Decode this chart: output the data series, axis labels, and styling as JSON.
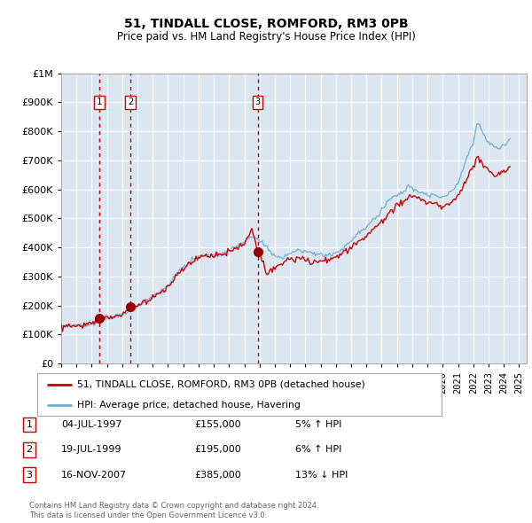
{
  "title": "51, TINDALL CLOSE, ROMFORD, RM3 0PB",
  "subtitle": "Price paid vs. HM Land Registry's House Price Index (HPI)",
  "ylim": [
    0,
    1000000
  ],
  "xlim_start": 1995.0,
  "xlim_end": 2025.5,
  "yticks": [
    0,
    100000,
    200000,
    300000,
    400000,
    500000,
    600000,
    700000,
    800000,
    900000,
    1000000
  ],
  "xticks": [
    1995,
    1996,
    1997,
    1998,
    1999,
    2000,
    2001,
    2002,
    2003,
    2004,
    2005,
    2006,
    2007,
    2008,
    2009,
    2010,
    2011,
    2012,
    2013,
    2014,
    2015,
    2016,
    2017,
    2018,
    2019,
    2020,
    2021,
    2022,
    2023,
    2024,
    2025
  ],
  "background_color": "#ffffff",
  "plot_bg_color": "#dce6f1",
  "grid_color": "#ffffff",
  "red_line_color": "#cc0000",
  "blue_line_color": "#6baed6",
  "sale_marker_color": "#990000",
  "sale_box_color": "#cc0000",
  "vline_color": "#cc0000",
  "sales": [
    {
      "num": 1,
      "year": 1997.5,
      "price": 155000,
      "label": "04-JUL-1997",
      "price_label": "£155,000",
      "hpi_label": "5% ↑ HPI"
    },
    {
      "num": 2,
      "year": 1999.54,
      "price": 195000,
      "label": "19-JUL-1999",
      "price_label": "£195,000",
      "hpi_label": "6% ↑ HPI"
    },
    {
      "num": 3,
      "year": 2007.88,
      "price": 385000,
      "label": "16-NOV-2007",
      "price_label": "£385,000",
      "hpi_label": "13% ↓ HPI"
    }
  ],
  "legend_line1": "51, TINDALL CLOSE, ROMFORD, RM3 0PB (detached house)",
  "legend_line2": "HPI: Average price, detached house, Havering",
  "footnote1": "Contains HM Land Registry data © Crown copyright and database right 2024.",
  "footnote2": "This data is licensed under the Open Government Licence v3.0."
}
